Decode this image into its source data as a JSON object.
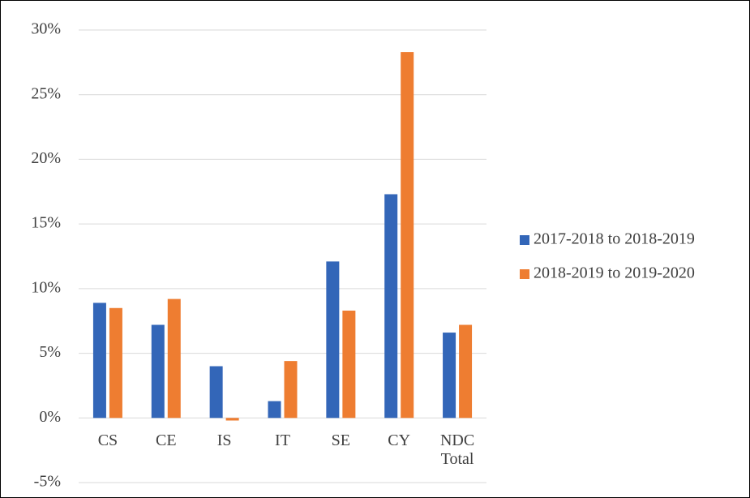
{
  "chart_data": {
    "type": "bar",
    "categories": [
      "CS",
      "CE",
      "IS",
      "IT",
      "SE",
      "CY",
      "NDC Total"
    ],
    "series": [
      {
        "name": "2017-2018 to 2018-2019",
        "color": "#3366b8",
        "values": [
          8.9,
          7.2,
          4.0,
          1.3,
          12.1,
          17.3,
          6.6
        ]
      },
      {
        "name": "2018-2019 to 2019-2020",
        "color": "#ee7d31",
        "values": [
          8.5,
          9.2,
          -0.2,
          4.4,
          8.3,
          28.3,
          7.2
        ]
      }
    ],
    "ylim": [
      -5,
      30
    ],
    "yticks": [
      {
        "value": -5,
        "label": "-5%"
      },
      {
        "value": 0,
        "label": "0%"
      },
      {
        "value": 5,
        "label": "5%"
      },
      {
        "value": 10,
        "label": "10%"
      },
      {
        "value": 15,
        "label": "15%"
      },
      {
        "value": 20,
        "label": "20%"
      },
      {
        "value": 25,
        "label": "25%"
      },
      {
        "value": 30,
        "label": "30%"
      }
    ],
    "grid": true,
    "legend": "right"
  }
}
